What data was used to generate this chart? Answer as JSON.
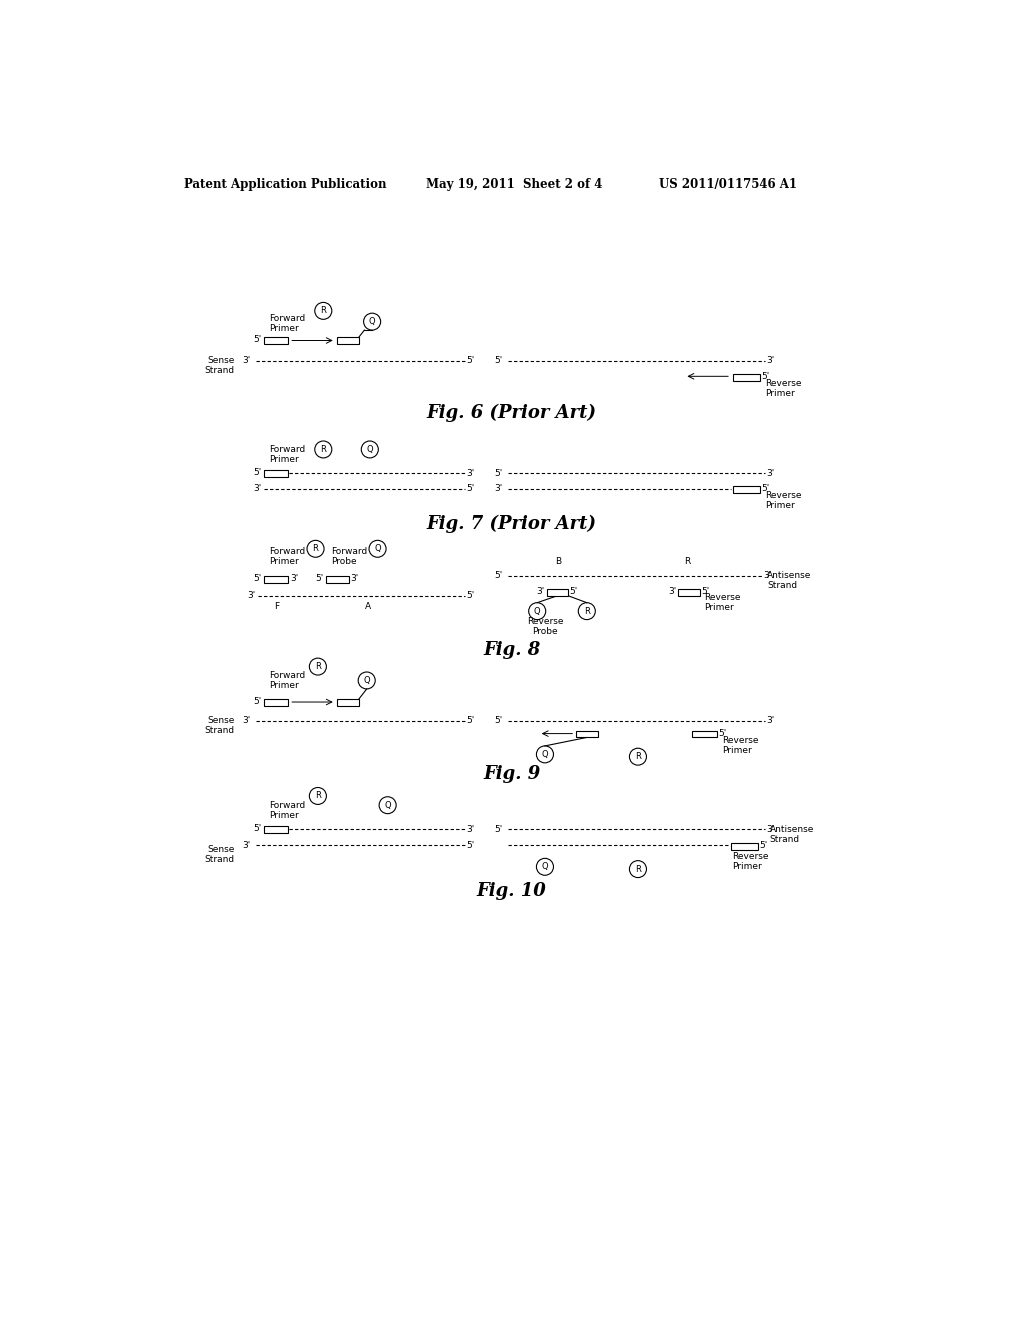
{
  "bg_color": "#ffffff",
  "header_left": "Patent Application Publication",
  "header_mid": "May 19, 2011  Sheet 2 of 4",
  "header_right": "US 2011/0117546 A1",
  "fig6_title": "Fig. 6 (Prior Art)",
  "fig7_title": "Fig. 7 (Prior Art)",
  "fig8_title": "Fig. 8",
  "fig9_title": "Fig. 9",
  "fig10_title": "Fig. 10"
}
